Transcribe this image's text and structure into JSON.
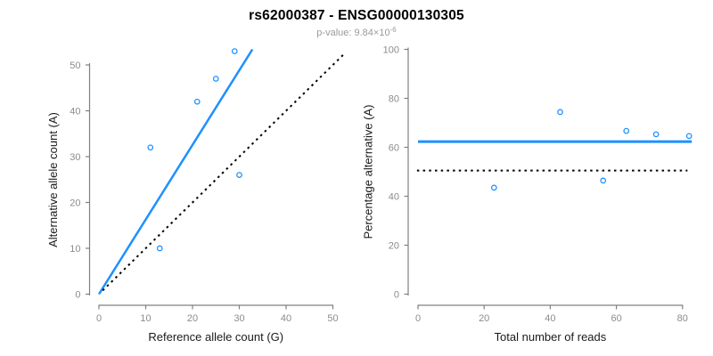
{
  "header": {
    "title": "rs62000387 - ENSG00000130305",
    "pvalue_prefix": "p-value: 9.84×10",
    "pvalue_exponent": "-6"
  },
  "style": {
    "accent_blue": "#1E90FF",
    "line_black": "#000000",
    "axis_gray": "#808080",
    "tick_label_gray": "#8C8C8C",
    "label_black": "#1A1A1A",
    "subtitle_gray": "#9B9B9B",
    "background": "#FFFFFF"
  },
  "chart_data": [
    {
      "type": "scatter",
      "name": "allele-counts",
      "xlabel": "Reference allele count (G)",
      "ylabel": "Alternative allele count (A)",
      "xticks": [
        0,
        10,
        20,
        30,
        40,
        50
      ],
      "yticks": [
        0,
        10,
        20,
        30,
        40,
        50
      ],
      "xrange": [
        0,
        50
      ],
      "yrange": [
        0,
        50
      ],
      "grid": false,
      "legend": "none",
      "points": [
        [
          11,
          32
        ],
        [
          13,
          10
        ],
        [
          21,
          42
        ],
        [
          25,
          47
        ],
        [
          29,
          53
        ],
        [
          30,
          26
        ]
      ],
      "lines": [
        {
          "name": "fit-line",
          "style": "solid",
          "color": "#1E90FF",
          "width": 2.5,
          "from": [
            0,
            0
          ],
          "to": [
            32.8,
            53.4
          ]
        },
        {
          "name": "identity-line",
          "style": "dotted",
          "color": "#000000",
          "width": 2,
          "from": [
            0.8,
            0.8
          ],
          "to": [
            52.6,
            52.6
          ]
        }
      ]
    },
    {
      "type": "scatter",
      "name": "percentage-vs-reads",
      "xlabel": "Total number of reads",
      "ylabel": "Percentage alternative (A)",
      "xticks": [
        0,
        20,
        40,
        60,
        80
      ],
      "yticks": [
        0,
        20,
        40,
        60,
        80,
        100
      ],
      "xrange": [
        0,
        80
      ],
      "yrange": [
        0,
        100
      ],
      "grid": false,
      "legend": "none",
      "points": [
        [
          23,
          43.5
        ],
        [
          43,
          74.4
        ],
        [
          56,
          46.4
        ],
        [
          63,
          66.7
        ],
        [
          72,
          65.3
        ],
        [
          82,
          64.6
        ]
      ],
      "lines": [
        {
          "name": "mean-percentage-line",
          "style": "solid",
          "color": "#1E90FF",
          "width": 3,
          "from": [
            0,
            62.3
          ],
          "to": [
            82.8,
            62.3
          ]
        },
        {
          "name": "expected-50pct-line",
          "style": "dotted",
          "color": "#000000",
          "width": 2,
          "from": [
            -0.3,
            50.5
          ],
          "to": [
            81.5,
            50.5
          ]
        }
      ]
    }
  ]
}
